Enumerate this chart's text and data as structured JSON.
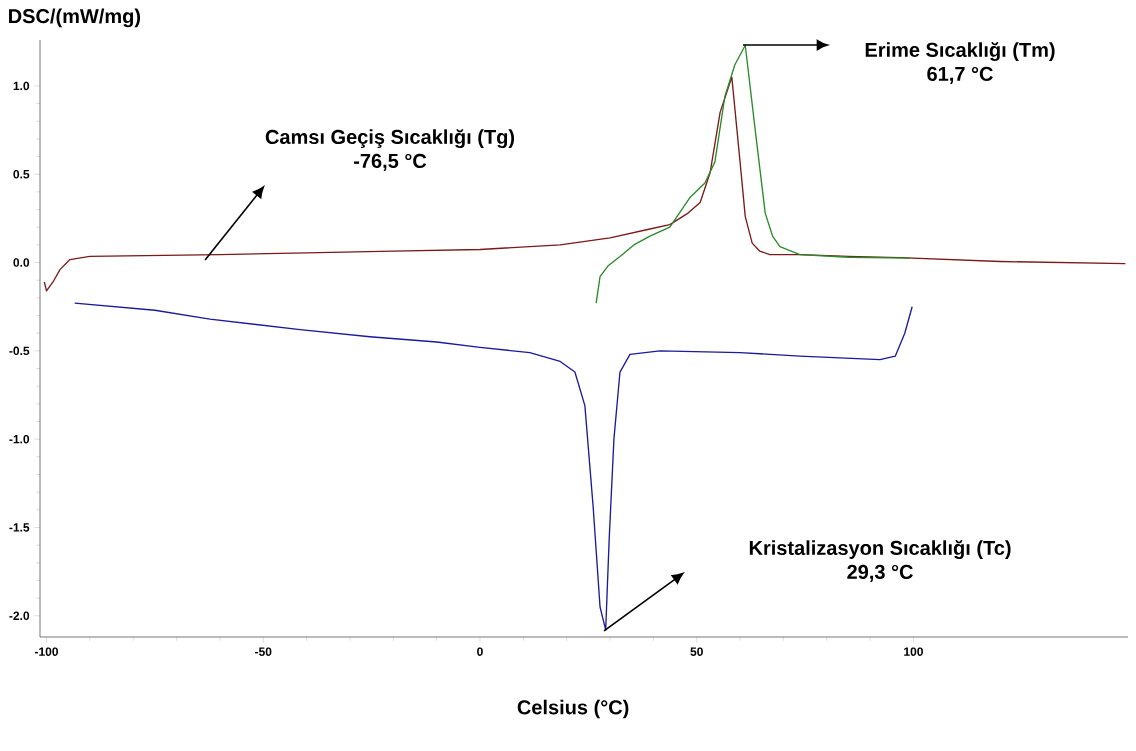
{
  "chart_data": {
    "type": "line",
    "xlabel": "Celsius (°C)",
    "ylabel": "DSC/(mW/mg)",
    "xlim": [
      -101.5,
      149.5
    ],
    "ylim": [
      -2.12,
      1.26
    ],
    "xticks": [
      -100,
      -50,
      0,
      50,
      100
    ],
    "yticks": [
      {
        "value": -2,
        "label": "-2.0"
      },
      {
        "value": -1.5,
        "label": "-1.5"
      },
      {
        "value": -1,
        "label": "-1.0"
      },
      {
        "value": -0.5,
        "label": "-0.5"
      },
      {
        "value": 0,
        "label": "0.0"
      },
      {
        "value": 0.5,
        "label": "0.5"
      },
      {
        "value": 1,
        "label": "1.0"
      }
    ],
    "series": [
      {
        "color": "#7a1a1a",
        "x": [
          -100.5,
          -100.0,
          -98.5,
          -96.9,
          -94.6,
          -90.0,
          -75.0,
          -60.0,
          -40.0,
          -20.0,
          0.0,
          18.5,
          30.0,
          39.2,
          43.8,
          48.0,
          50.8,
          53.1,
          55.4,
          58.1,
          60.0,
          61.2,
          62.8,
          64.5,
          66.9,
          73.8,
          85.0,
          96.9,
          120.0,
          148.9
        ],
        "values": [
          -0.11,
          -0.16,
          -0.11,
          -0.04,
          0.017,
          0.035,
          0.04,
          0.045,
          0.055,
          0.065,
          0.074,
          0.1,
          0.14,
          0.19,
          0.215,
          0.28,
          0.34,
          0.51,
          0.85,
          1.05,
          0.57,
          0.26,
          0.11,
          0.065,
          0.045,
          0.045,
          0.035,
          0.028,
          0.006,
          -0.006
        ]
      },
      {
        "color": "#2a8a2a",
        "x": [
          26.8,
          27.7,
          29.5,
          32.3,
          35.5,
          39.2,
          43.8,
          46.0,
          48.5,
          51.9,
          54.2,
          56.5,
          58.8,
          61.2,
          63.5,
          65.8,
          67.5,
          69.2,
          73.8,
          85.0,
          99.2
        ],
        "values": [
          -0.23,
          -0.08,
          -0.02,
          0.034,
          0.1,
          0.15,
          0.2,
          0.28,
          0.37,
          0.45,
          0.57,
          0.94,
          1.12,
          1.23,
          0.75,
          0.28,
          0.15,
          0.09,
          0.045,
          0.03,
          0.025
        ]
      },
      {
        "color": "#1a1a9a",
        "x": [
          -93.5,
          -75.0,
          -62.3,
          -41.5,
          -25.4,
          -10.0,
          0.0,
          11.5,
          18.5,
          21.9,
          24.2,
          26.1,
          27.7,
          29.0,
          29.8,
          30.9,
          32.3,
          34.6,
          41.5,
          60.0,
          73.8,
          92.3,
          95.8,
          98.0,
          99.7
        ],
        "values": [
          -0.23,
          -0.27,
          -0.32,
          -0.38,
          -0.42,
          -0.45,
          -0.48,
          -0.51,
          -0.56,
          -0.62,
          -0.81,
          -1.38,
          -1.95,
          -2.08,
          -1.57,
          -1.0,
          -0.62,
          -0.52,
          -0.5,
          -0.51,
          -0.53,
          -0.55,
          -0.53,
          -0.4,
          -0.25
        ]
      }
    ],
    "annotations": [
      "Camsı Geçiş Sıcaklığı (Tg)",
      "-76,5 °C",
      "Erime Sıcaklığı (Tm)",
      "61,7 °C",
      "Kristalizasyon Sıcaklığı (Tc)",
      "29,3 °C"
    ]
  }
}
